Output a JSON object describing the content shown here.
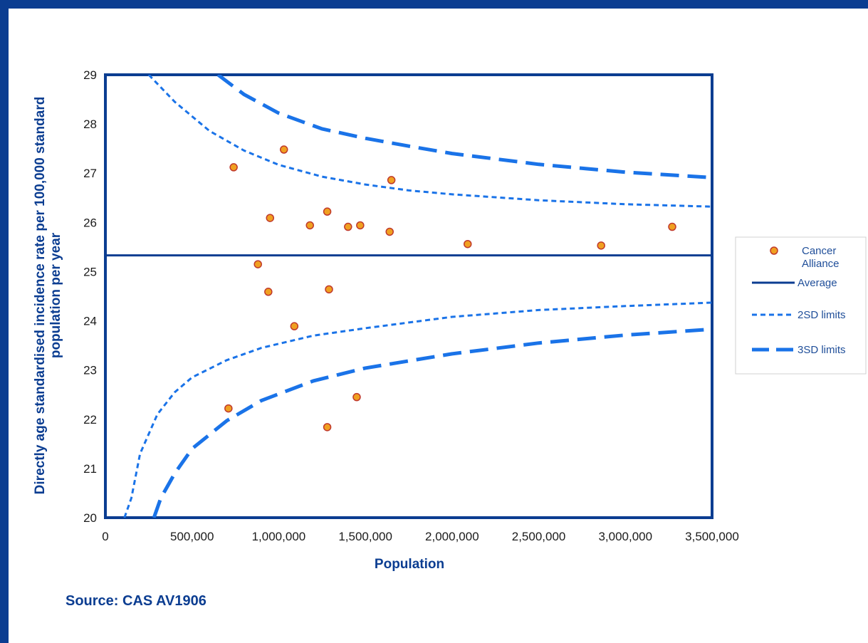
{
  "colors": {
    "frame": "#0b3d91",
    "axis": "#0b3d91",
    "average_line": "#0b3d91",
    "limit_lines": "#1a73e8",
    "point_fill": "#f0a020",
    "point_stroke": "#c0392b",
    "source_text": "#0b3d91"
  },
  "source": "Source: CAS AV1906",
  "chart_data": {
    "type": "scatter",
    "title": "",
    "xlabel": "Population",
    "ylabel": "Directly age standardised incidence rate per 100,000 standard population per year",
    "xlim": [
      0,
      3500000
    ],
    "ylim": [
      20,
      29
    ],
    "x_ticks": [
      "0",
      "500,000",
      "1,000,000",
      "1,500,000",
      "2,000,000",
      "2,500,000",
      "3,000,000",
      "3,500,000"
    ],
    "y_ticks": [
      "20",
      "21",
      "22",
      "23",
      "24",
      "25",
      "26",
      "27",
      "28",
      "29"
    ],
    "legend_position": "right",
    "legend": [
      {
        "label": "Cancer Alliance",
        "marker": "circle"
      },
      {
        "label": "Average",
        "marker": "solid"
      },
      {
        "label": "2SD limits",
        "marker": "dotted"
      },
      {
        "label": "3SD limits",
        "marker": "dashed"
      }
    ],
    "average": 25.33,
    "points": [
      {
        "x": 740000,
        "y": 27.12
      },
      {
        "x": 1030000,
        "y": 27.48
      },
      {
        "x": 1650000,
        "y": 26.86
      },
      {
        "x": 950000,
        "y": 26.09
      },
      {
        "x": 1180000,
        "y": 25.94
      },
      {
        "x": 1280000,
        "y": 26.22
      },
      {
        "x": 1400000,
        "y": 25.91
      },
      {
        "x": 1470000,
        "y": 25.94
      },
      {
        "x": 1640000,
        "y": 25.81
      },
      {
        "x": 2090000,
        "y": 25.56
      },
      {
        "x": 2860000,
        "y": 25.53
      },
      {
        "x": 3270000,
        "y": 25.91
      },
      {
        "x": 880000,
        "y": 25.15
      },
      {
        "x": 940000,
        "y": 24.59
      },
      {
        "x": 1290000,
        "y": 24.64
      },
      {
        "x": 1090000,
        "y": 23.89
      },
      {
        "x": 710000,
        "y": 22.22
      },
      {
        "x": 1450000,
        "y": 22.45
      },
      {
        "x": 1280000,
        "y": 21.84
      }
    ],
    "limits": {
      "upper_2sd": [
        [
          250000,
          29.0
        ],
        [
          400000,
          28.45
        ],
        [
          600000,
          27.86
        ],
        [
          800000,
          27.46
        ],
        [
          1000000,
          27.17
        ],
        [
          1250000,
          26.93
        ],
        [
          1500000,
          26.77
        ],
        [
          1750000,
          26.65
        ],
        [
          2000000,
          26.57
        ],
        [
          2500000,
          26.45
        ],
        [
          3000000,
          26.37
        ],
        [
          3500000,
          26.32
        ]
      ],
      "lower_2sd": [
        [
          110000,
          20.0
        ],
        [
          150000,
          20.4
        ],
        [
          200000,
          21.3
        ],
        [
          300000,
          22.1
        ],
        [
          400000,
          22.55
        ],
        [
          500000,
          22.85
        ],
        [
          700000,
          23.2
        ],
        [
          900000,
          23.45
        ],
        [
          1200000,
          23.7
        ],
        [
          1500000,
          23.85
        ],
        [
          2000000,
          24.08
        ],
        [
          2500000,
          24.22
        ],
        [
          3000000,
          24.3
        ],
        [
          3500000,
          24.37
        ]
      ],
      "upper_3sd": [
        [
          650000,
          29.0
        ],
        [
          800000,
          28.6
        ],
        [
          1000000,
          28.22
        ],
        [
          1250000,
          27.9
        ],
        [
          1500000,
          27.71
        ],
        [
          1750000,
          27.55
        ],
        [
          2000000,
          27.4
        ],
        [
          2500000,
          27.18
        ],
        [
          3000000,
          27.02
        ],
        [
          3500000,
          26.91
        ]
      ],
      "lower_3sd": [
        [
          280000,
          20.0
        ],
        [
          320000,
          20.4
        ],
        [
          400000,
          20.9
        ],
        [
          500000,
          21.4
        ],
        [
          700000,
          21.97
        ],
        [
          900000,
          22.38
        ],
        [
          1200000,
          22.78
        ],
        [
          1500000,
          23.04
        ],
        [
          2000000,
          23.33
        ],
        [
          2500000,
          23.55
        ],
        [
          3000000,
          23.71
        ],
        [
          3500000,
          23.83
        ]
      ]
    }
  }
}
